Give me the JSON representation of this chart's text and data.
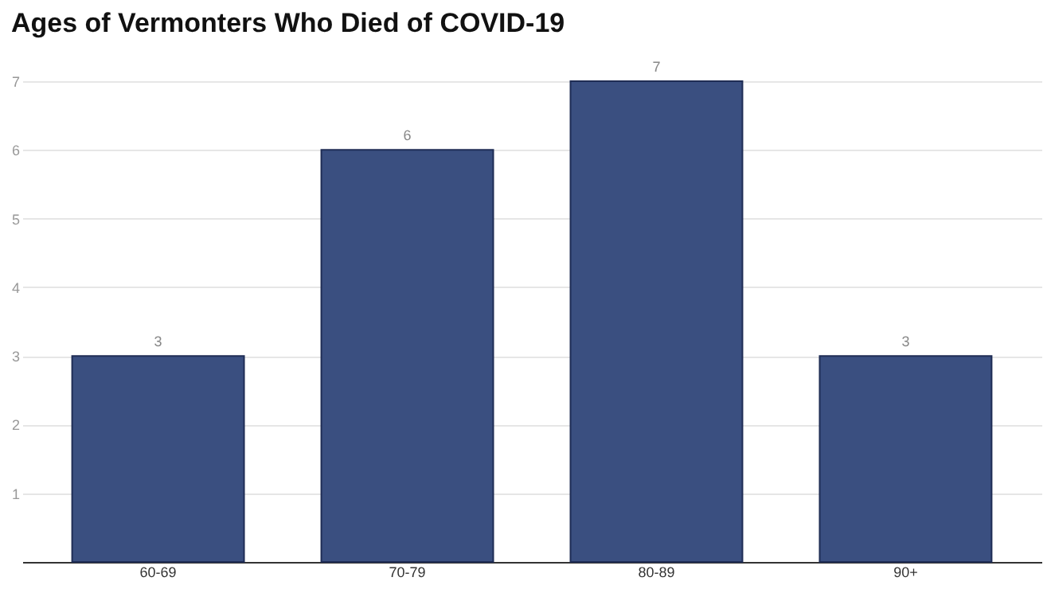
{
  "chart_data": {
    "type": "bar",
    "title": "Ages of Vermonters Who Died of COVID-19",
    "categories": [
      "60-69",
      "70-79",
      "80-89",
      "90+"
    ],
    "values": [
      3,
      6,
      7,
      3
    ],
    "color": "#3a4f80",
    "ylim": [
      0,
      7
    ],
    "yticks": [
      1,
      2,
      3,
      4,
      5,
      6,
      7
    ],
    "grid": "y",
    "data_labels": true
  }
}
